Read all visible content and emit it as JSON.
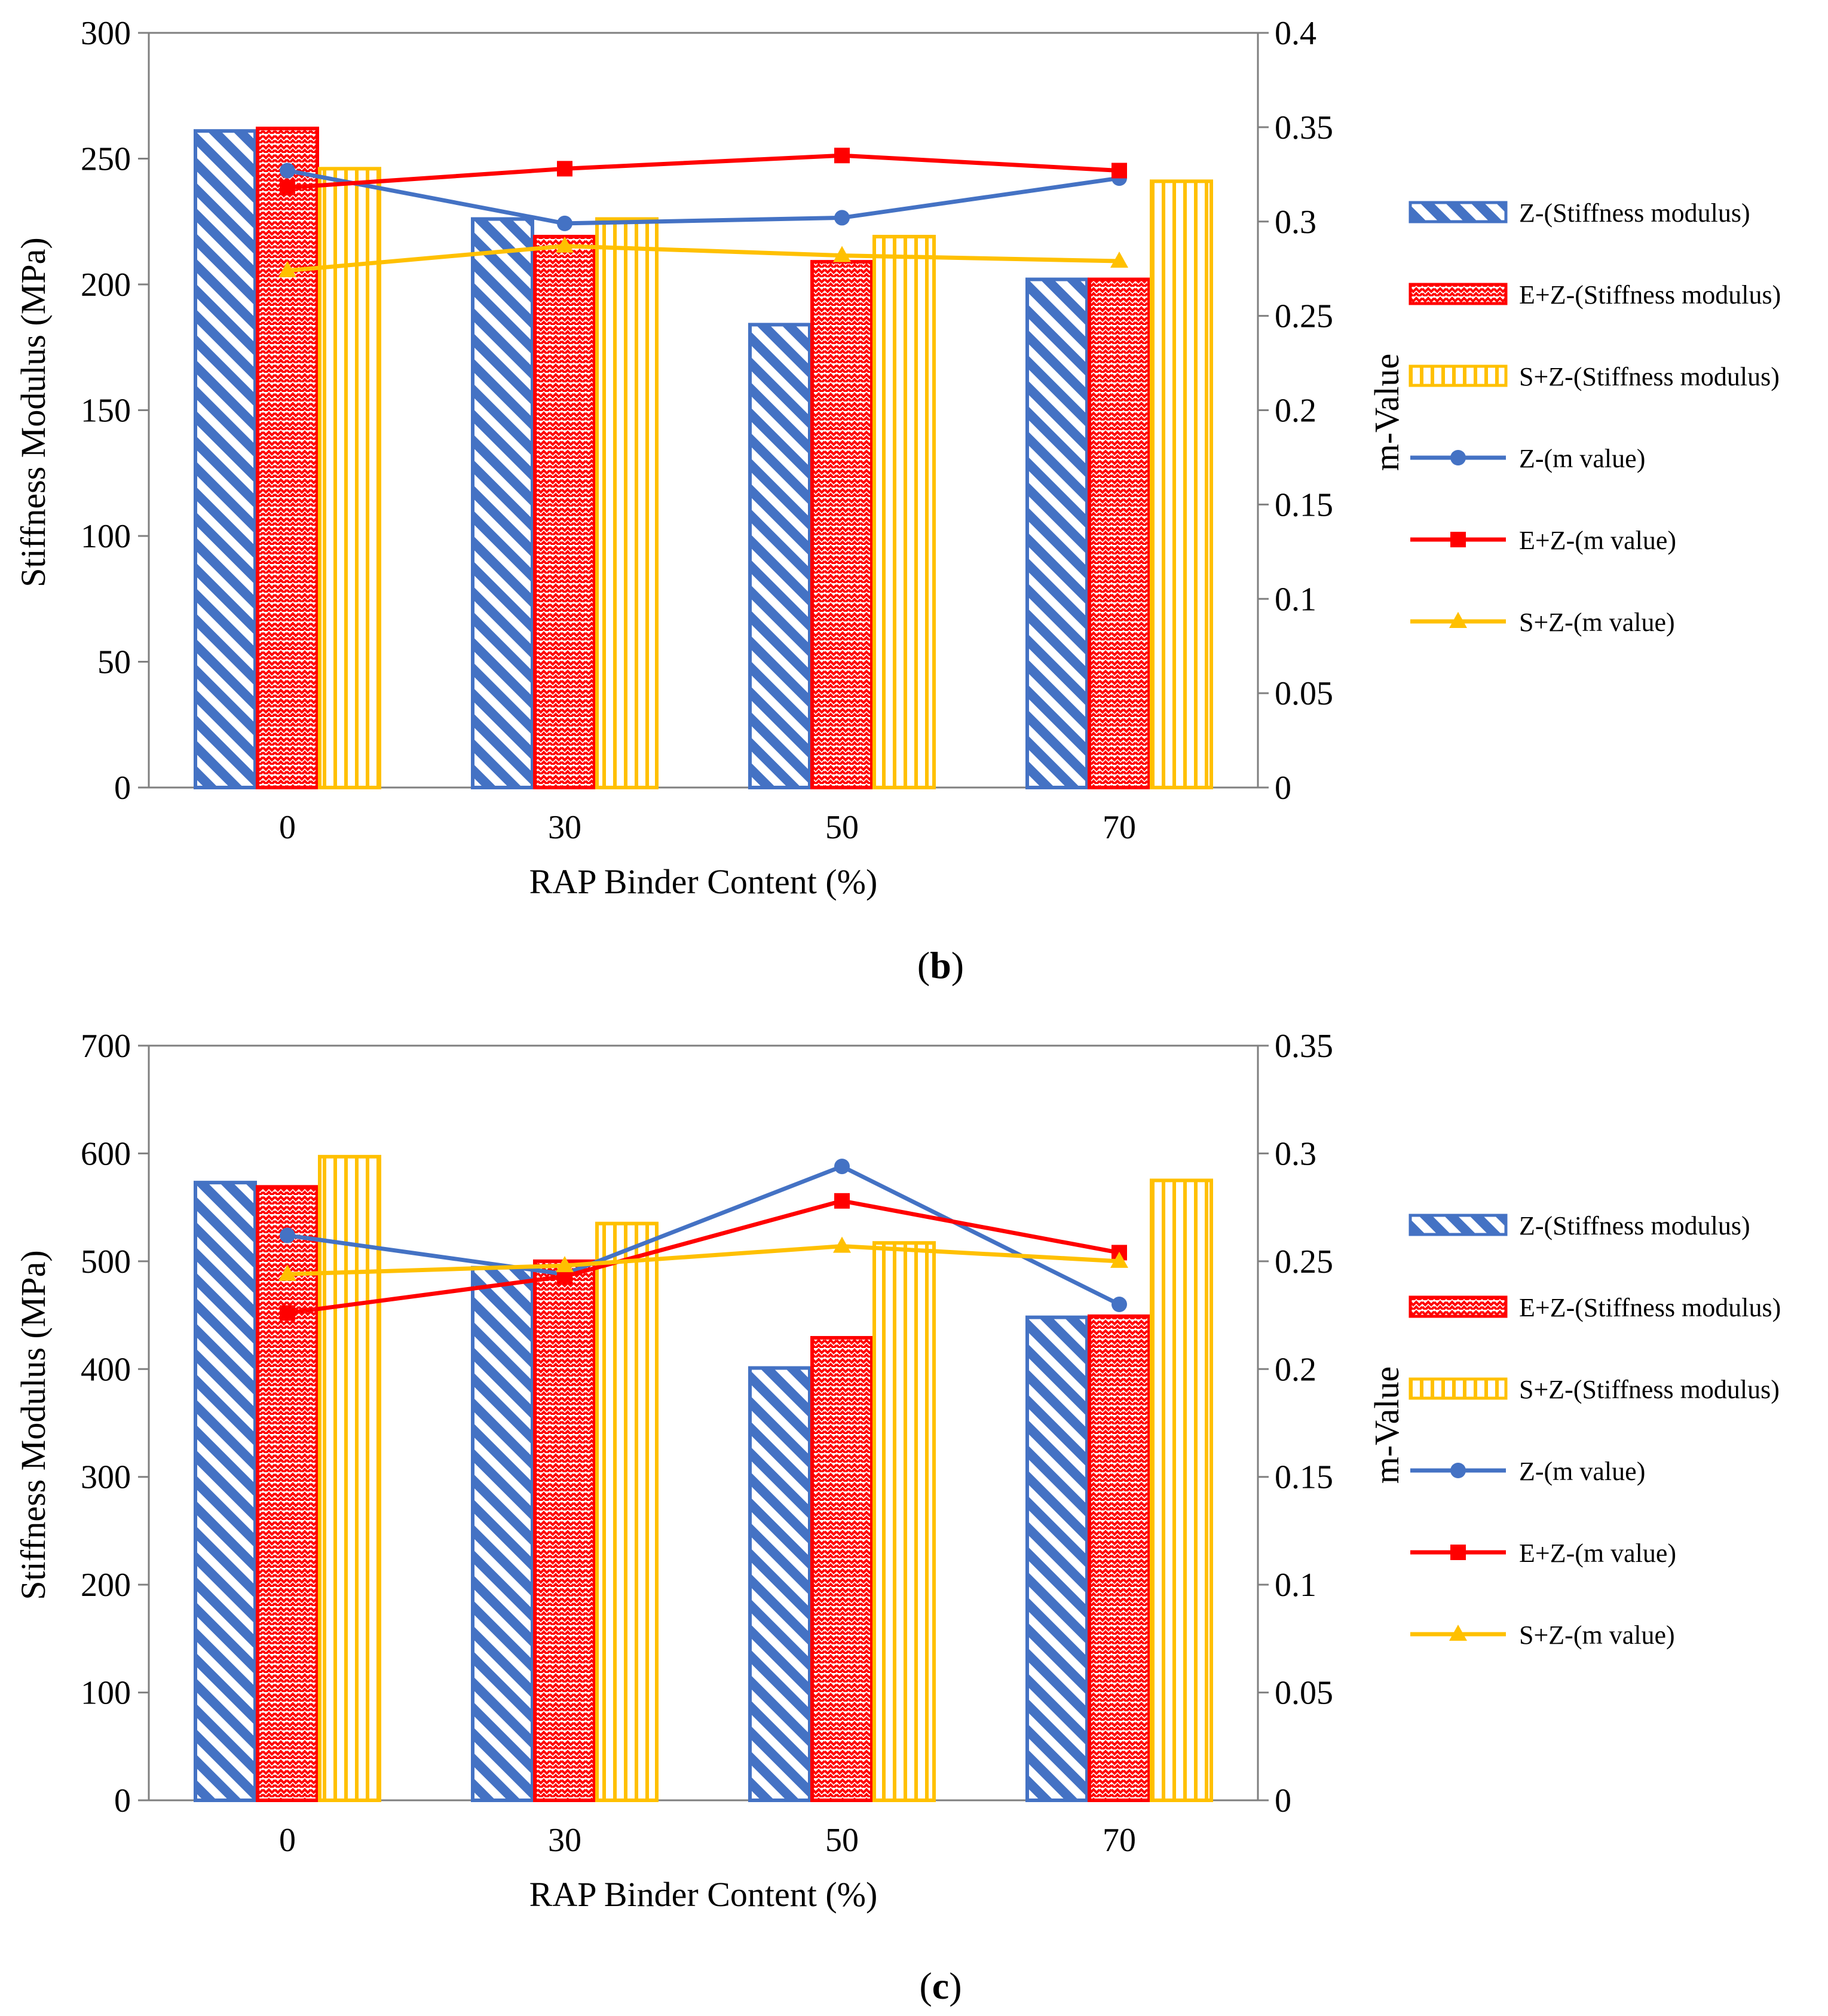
{
  "colors": {
    "blue": "#4472C4",
    "red": "#FF0000",
    "yellow": "#FFC000",
    "frame": "#7F7F7F",
    "axis": "#808080"
  },
  "chart_data": [
    {
      "type": "bar",
      "panel": "b",
      "caption_open": "(",
      "caption_letter": "b",
      "caption_close": ")",
      "categories": [
        "0",
        "30",
        "50",
        "70"
      ],
      "xlabel": "RAP Binder Content (%)",
      "ylabel": "Stiffness Modulus (MPa)",
      "y2label": "m-Value",
      "ylim": [
        0,
        300
      ],
      "yticks": [
        "0",
        "50",
        "100",
        "150",
        "200",
        "250",
        "300"
      ],
      "y2lim": [
        0,
        0.4
      ],
      "y2ticks": [
        "0",
        "0.05",
        "0.1",
        "0.15",
        "0.2",
        "0.25",
        "0.3",
        "0.35",
        "0.4"
      ],
      "grid": false,
      "legend_position": "right",
      "bar_series": [
        {
          "name": "Z-(Stiffness modulus)",
          "color": "blue",
          "pattern": "diagonal",
          "values": [
            261,
            226,
            184,
            202
          ]
        },
        {
          "name": "E+Z-(Stiffness modulus)",
          "color": "red",
          "pattern": "zigzag",
          "values": [
            262,
            219,
            209,
            202
          ]
        },
        {
          "name": "S+Z-(Stiffness modulus)",
          "color": "yellow",
          "pattern": "vertical",
          "values": [
            246,
            226,
            219,
            241
          ]
        }
      ],
      "line_series": [
        {
          "name": "Z-(m value)",
          "color": "blue",
          "marker": "circle",
          "values": [
            0.327,
            0.299,
            0.302,
            0.323
          ]
        },
        {
          "name": "E+Z-(m value)",
          "color": "red",
          "marker": "square",
          "values": [
            0.318,
            0.328,
            0.335,
            0.327
          ]
        },
        {
          "name": "S+Z-(m value)",
          "color": "yellow",
          "marker": "triangle",
          "values": [
            0.274,
            0.287,
            0.282,
            0.279
          ]
        }
      ]
    },
    {
      "type": "bar",
      "panel": "c",
      "caption_open": "(",
      "caption_letter": "c",
      "caption_close": ")",
      "categories": [
        "0",
        "30",
        "50",
        "70"
      ],
      "xlabel": "RAP Binder Content (%)",
      "ylabel": "Stiffness Modulus (MPa)",
      "y2label": "m-Value",
      "ylim": [
        0,
        700
      ],
      "yticks": [
        "0",
        "100",
        "200",
        "300",
        "400",
        "500",
        "600",
        "700"
      ],
      "y2lim": [
        0,
        0.35
      ],
      "y2ticks": [
        "0",
        "0.05",
        "0.1",
        "0.15",
        "0.2",
        "0.25",
        "0.3",
        "0.35"
      ],
      "grid": false,
      "legend_position": "right",
      "bar_series": [
        {
          "name": "Z-(Stiffness modulus)",
          "color": "blue",
          "pattern": "diagonal",
          "values": [
            573,
            494,
            401,
            448
          ]
        },
        {
          "name": "E+Z-(Stiffness modulus)",
          "color": "red",
          "pattern": "zigzag",
          "values": [
            569,
            500,
            429,
            449
          ]
        },
        {
          "name": "S+Z-(Stiffness modulus)",
          "color": "yellow",
          "pattern": "vertical",
          "values": [
            597,
            535,
            517,
            575
          ]
        }
      ],
      "line_series": [
        {
          "name": "Z-(m value)",
          "color": "blue",
          "marker": "circle",
          "values": [
            0.262,
            0.244,
            0.294,
            0.23
          ]
        },
        {
          "name": "E+Z-(m value)",
          "color": "red",
          "marker": "square",
          "values": [
            0.226,
            0.243,
            0.278,
            0.254
          ]
        },
        {
          "name": "S+Z-(m value)",
          "color": "yellow",
          "marker": "triangle",
          "values": [
            0.244,
            0.248,
            0.257,
            0.25
          ]
        }
      ]
    }
  ]
}
